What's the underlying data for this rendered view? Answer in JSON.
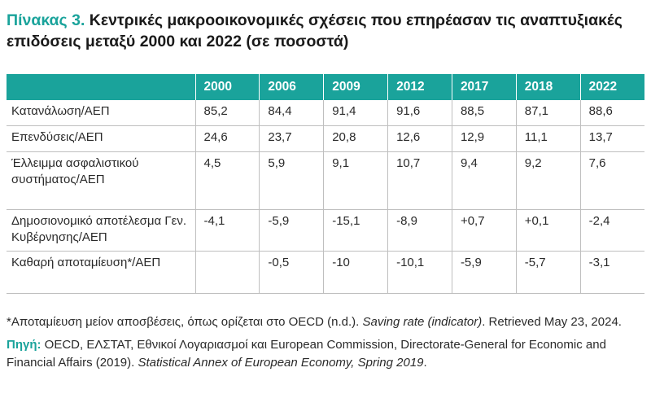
{
  "title": {
    "label": "Πίνακας 3.",
    "text": "Κεντρικές μακροοικονομικές σχέσεις που επηρέασαν τις αναπτυξιακές επιδόσεις μεταξύ 2000 και 2022 (σε ποσοστά)"
  },
  "table": {
    "years": [
      "2000",
      "2006",
      "2009",
      "2012",
      "2017",
      "2018",
      "2022"
    ],
    "rows": [
      {
        "label": "Κατανάλωση/ΑΕΠ",
        "values": [
          "85,2",
          "84,4",
          "91,4",
          "91,6",
          "88,5",
          "87,1",
          "88,6"
        ]
      },
      {
        "label": "Επενδύσεις/ΑΕΠ",
        "values": [
          "24,6",
          "23,7",
          "20,8",
          "12,6",
          "12,9",
          "11,1",
          "13,7"
        ]
      },
      {
        "label": "Έλλειμμα ασφαλιστικού συστήματος/ΑΕΠ",
        "values": [
          "4,5",
          "5,9",
          "9,1",
          "10,7",
          "9,4",
          "9,2",
          "7,6"
        ]
      },
      {
        "label": "Δημοσιονομικό αποτέλεσμα Γεν. Κυβέρνησης/ΑΕΠ",
        "values": [
          "-4,1",
          "-5,9",
          "-15,1",
          "-8,9",
          "+0,7",
          "+0,1",
          "-2,4"
        ]
      },
      {
        "label": "Καθαρή αποταμίευση*/ΑΕΠ",
        "values": [
          "",
          "-0,5",
          "-10",
          "-10,1",
          "-5,9",
          "-5,7",
          "-3,1"
        ]
      }
    ]
  },
  "notes": {
    "footnote_text": "*Αποταμίευση μείον αποσβέσεις, όπως ορίζεται στο OECD (n.d.). ",
    "footnote_italic": "Saving rate (indicator)",
    "footnote_tail": ". Retrieved May 23, 2024.",
    "source_label": "Πηγή:",
    "source_text": " OECD, ΕΛΣΤΑΤ, Εθνικοί Λογαριασμοί και European Commission, Directorate-General for Economic and Financial Affairs (2019). ",
    "source_italic": "Statistical Annex of European Economy, Spring 2019",
    "source_tail": "."
  },
  "colors": {
    "accent": "#1aa39b",
    "grid": "#bfbfbf"
  }
}
